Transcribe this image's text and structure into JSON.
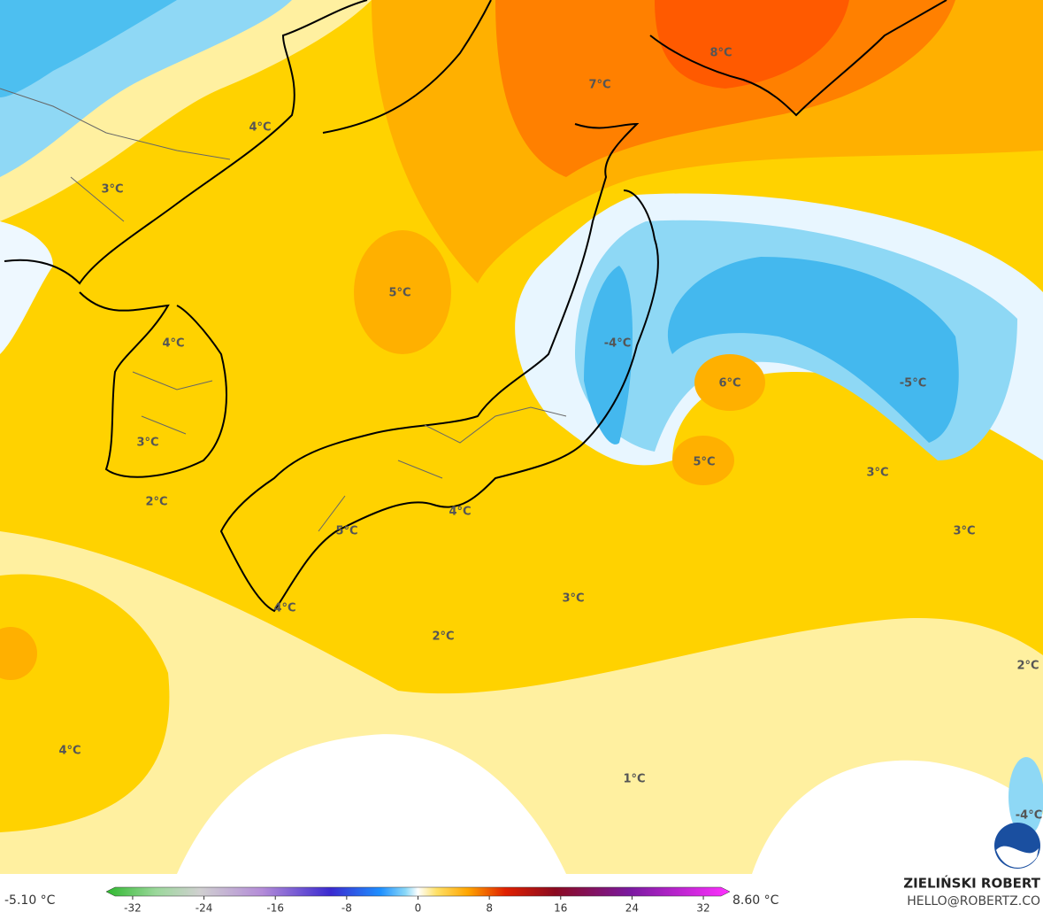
{
  "map": {
    "labels": [
      "8°C",
      "7°C",
      "4°C",
      "3°C",
      "5°C",
      "4°C",
      "-4°C",
      "6°C",
      "-5°C",
      "3°C",
      "5°C",
      "3°C",
      "2°C",
      "4°C",
      "5°C",
      "3°C",
      "3°C",
      "4°C",
      "2°C",
      "2°C",
      "4°C",
      "1°C",
      "-4°C"
    ]
  },
  "colorbar": {
    "min_label": "-5.10 °C",
    "max_label": "8.60 °C",
    "ticks": [
      -32,
      -24,
      -16,
      -8,
      0,
      8,
      16,
      24,
      32
    ]
  },
  "credit": {
    "name": "ZIELIŃSKI ROBERT",
    "email": "HELLO@ROBERTZ.CO"
  }
}
